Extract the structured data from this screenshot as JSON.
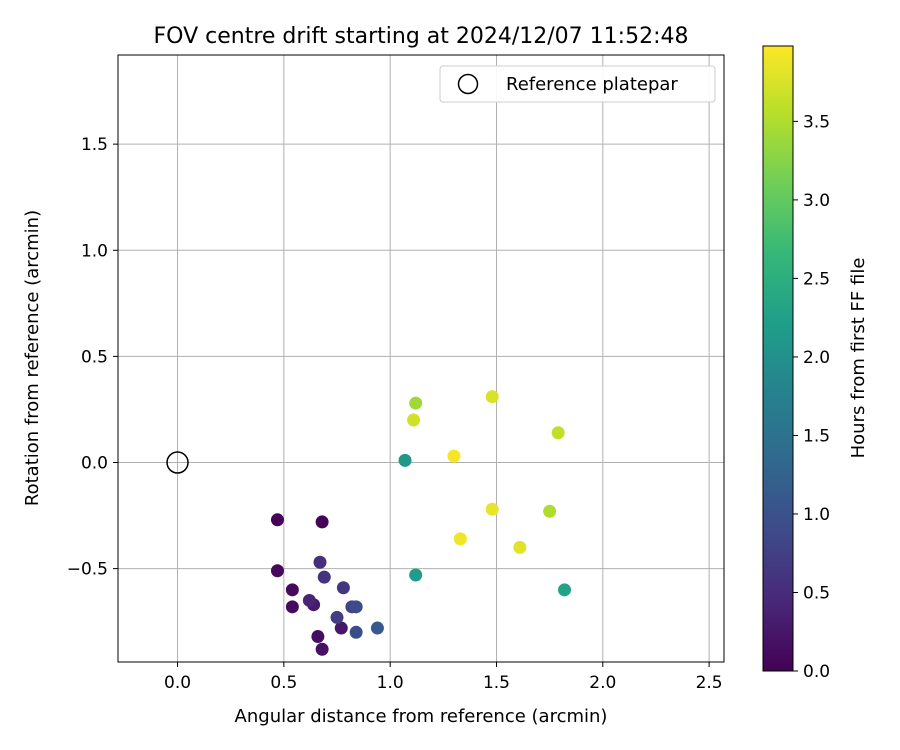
{
  "chart_data": {
    "type": "scatter",
    "title": "FOV centre drift starting at 2024/12/07 11:52:48",
    "xlabel": "Angular distance from reference (arcmin)",
    "ylabel": "Rotation from reference (arcmin)",
    "xlim": [
      -0.28,
      2.57
    ],
    "ylim": [
      -0.94,
      1.92
    ],
    "xticks": [
      0.0,
      0.5,
      1.0,
      1.5,
      2.0,
      2.5
    ],
    "xtick_labels": [
      "0.0",
      "0.5",
      "1.0",
      "1.5",
      "2.0",
      "2.5"
    ],
    "yticks": [
      -0.5,
      0.0,
      0.5,
      1.0,
      1.5
    ],
    "ytick_labels": [
      "−0.5",
      "0.0",
      "0.5",
      "1.0",
      "1.5"
    ],
    "grid": true,
    "legend": {
      "placement": "upper right",
      "entries": [
        "Reference platepar"
      ]
    },
    "reference_point": {
      "label": "Reference platepar",
      "x": 0.0,
      "y": 0.0,
      "marker": "open-circle",
      "color": "#000000"
    },
    "colorbar": {
      "label": "Hours from first FF file",
      "colormap": "viridis",
      "range": [
        0.0,
        3.98
      ],
      "ticks": [
        0.0,
        0.5,
        1.0,
        1.5,
        2.0,
        2.5,
        3.0,
        3.5
      ],
      "tick_labels": [
        "0.0",
        "0.5",
        "1.0",
        "1.5",
        "2.0",
        "2.5",
        "3.0",
        "3.5"
      ]
    },
    "series": [
      {
        "hours_encoded_by": "color",
        "points": [
          {
            "x": 0.47,
            "y": -0.27,
            "hours": 0.02
          },
          {
            "x": 0.68,
            "y": -0.28,
            "hours": 0.05
          },
          {
            "x": 0.47,
            "y": -0.51,
            "hours": 0.08
          },
          {
            "x": 0.54,
            "y": -0.6,
            "hours": 0.1
          },
          {
            "x": 0.54,
            "y": -0.68,
            "hours": 0.12
          },
          {
            "x": 0.66,
            "y": -0.82,
            "hours": 0.15
          },
          {
            "x": 0.68,
            "y": -0.88,
            "hours": 0.18
          },
          {
            "x": 0.77,
            "y": -0.78,
            "hours": 0.25
          },
          {
            "x": 0.64,
            "y": -0.67,
            "hours": 0.3
          },
          {
            "x": 0.62,
            "y": -0.65,
            "hours": 0.4
          },
          {
            "x": 0.67,
            "y": -0.47,
            "hours": 0.55
          },
          {
            "x": 0.69,
            "y": -0.54,
            "hours": 0.6
          },
          {
            "x": 0.78,
            "y": -0.59,
            "hours": 0.65
          },
          {
            "x": 0.75,
            "y": -0.73,
            "hours": 0.72
          },
          {
            "x": 0.82,
            "y": -0.68,
            "hours": 0.8
          },
          {
            "x": 0.84,
            "y": -0.68,
            "hours": 0.9
          },
          {
            "x": 0.84,
            "y": -0.8,
            "hours": 0.95
          },
          {
            "x": 0.94,
            "y": -0.78,
            "hours": 1.1
          },
          {
            "x": 1.07,
            "y": 0.01,
            "hours": 2.1
          },
          {
            "x": 1.12,
            "y": -0.53,
            "hours": 2.2
          },
          {
            "x": 1.82,
            "y": -0.6,
            "hours": 2.3
          },
          {
            "x": 1.12,
            "y": 0.28,
            "hours": 3.4
          },
          {
            "x": 1.11,
            "y": 0.2,
            "hours": 3.7
          },
          {
            "x": 1.48,
            "y": 0.31,
            "hours": 3.75
          },
          {
            "x": 1.79,
            "y": 0.14,
            "hours": 3.6
          },
          {
            "x": 1.3,
            "y": 0.03,
            "hours": 3.95
          },
          {
            "x": 1.48,
            "y": -0.22,
            "hours": 3.85
          },
          {
            "x": 1.75,
            "y": -0.23,
            "hours": 3.5
          },
          {
            "x": 1.33,
            "y": -0.36,
            "hours": 3.9
          },
          {
            "x": 1.61,
            "y": -0.4,
            "hours": 3.8
          }
        ]
      }
    ]
  }
}
